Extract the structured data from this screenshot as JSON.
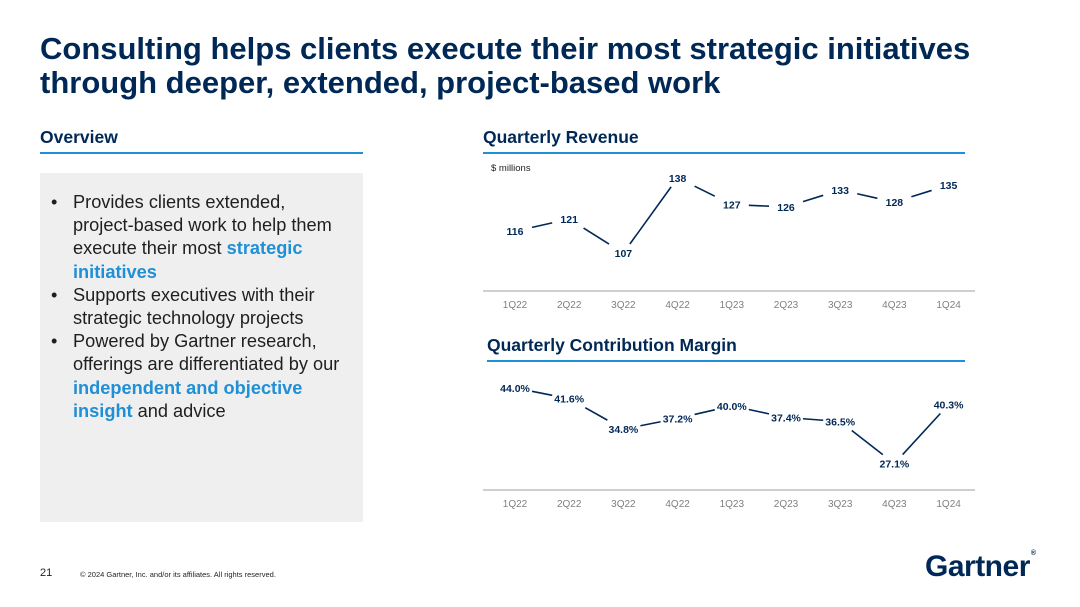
{
  "title": "Consulting helps clients execute their most strategic initiatives through deeper, extended, project-based work",
  "overview": {
    "heading": "Overview",
    "bullets": [
      {
        "t1": "Provides clients extended, project-based work to help them execute their most ",
        "h": "strategic initiatives",
        "t2": ""
      },
      {
        "t1": "Supports executives with their strategic technology projects",
        "h": "",
        "t2": ""
      },
      {
        "t1": "Powered by Gartner research, offerings are differentiated by our ",
        "h": "independent and objective insight",
        "t2": " and advice"
      }
    ]
  },
  "colors": {
    "navy": "#002856",
    "accent": "#1f8fd6",
    "panel": "#efefef",
    "axis": "#bfbfbf",
    "tick": "#7f7f7f"
  },
  "chart_data": [
    {
      "type": "line",
      "title": "Quarterly Revenue",
      "ylabel": "$ millions",
      "categories": [
        "1Q22",
        "2Q22",
        "3Q22",
        "4Q22",
        "1Q23",
        "2Q23",
        "3Q23",
        "4Q23",
        "1Q24"
      ],
      "values": [
        116,
        121,
        107,
        138,
        127,
        126,
        133,
        128,
        135
      ],
      "labels": [
        "116",
        "121",
        "107",
        "138",
        "127",
        "126",
        "133",
        "128",
        "135"
      ],
      "ylim": [
        100,
        140
      ],
      "grid": false
    },
    {
      "type": "line",
      "title": "Quarterly Contribution Margin",
      "categories": [
        "1Q22",
        "2Q22",
        "3Q22",
        "4Q22",
        "1Q23",
        "2Q23",
        "3Q23",
        "4Q23",
        "1Q24"
      ],
      "values": [
        44.0,
        41.6,
        34.8,
        37.2,
        40.0,
        37.4,
        36.5,
        27.1,
        40.3
      ],
      "labels": [
        "44.0%",
        "41.6%",
        "34.8%",
        "37.2%",
        "40.0%",
        "37.4%",
        "36.5%",
        "27.1%",
        "40.3%"
      ],
      "ylim": [
        25,
        46
      ],
      "grid": false
    }
  ],
  "footer": {
    "page": "21",
    "copyright": "© 2024 Gartner, Inc. and/or its affiliates. All rights reserved.",
    "logo": "Gartner",
    "logo_mark": "®"
  }
}
